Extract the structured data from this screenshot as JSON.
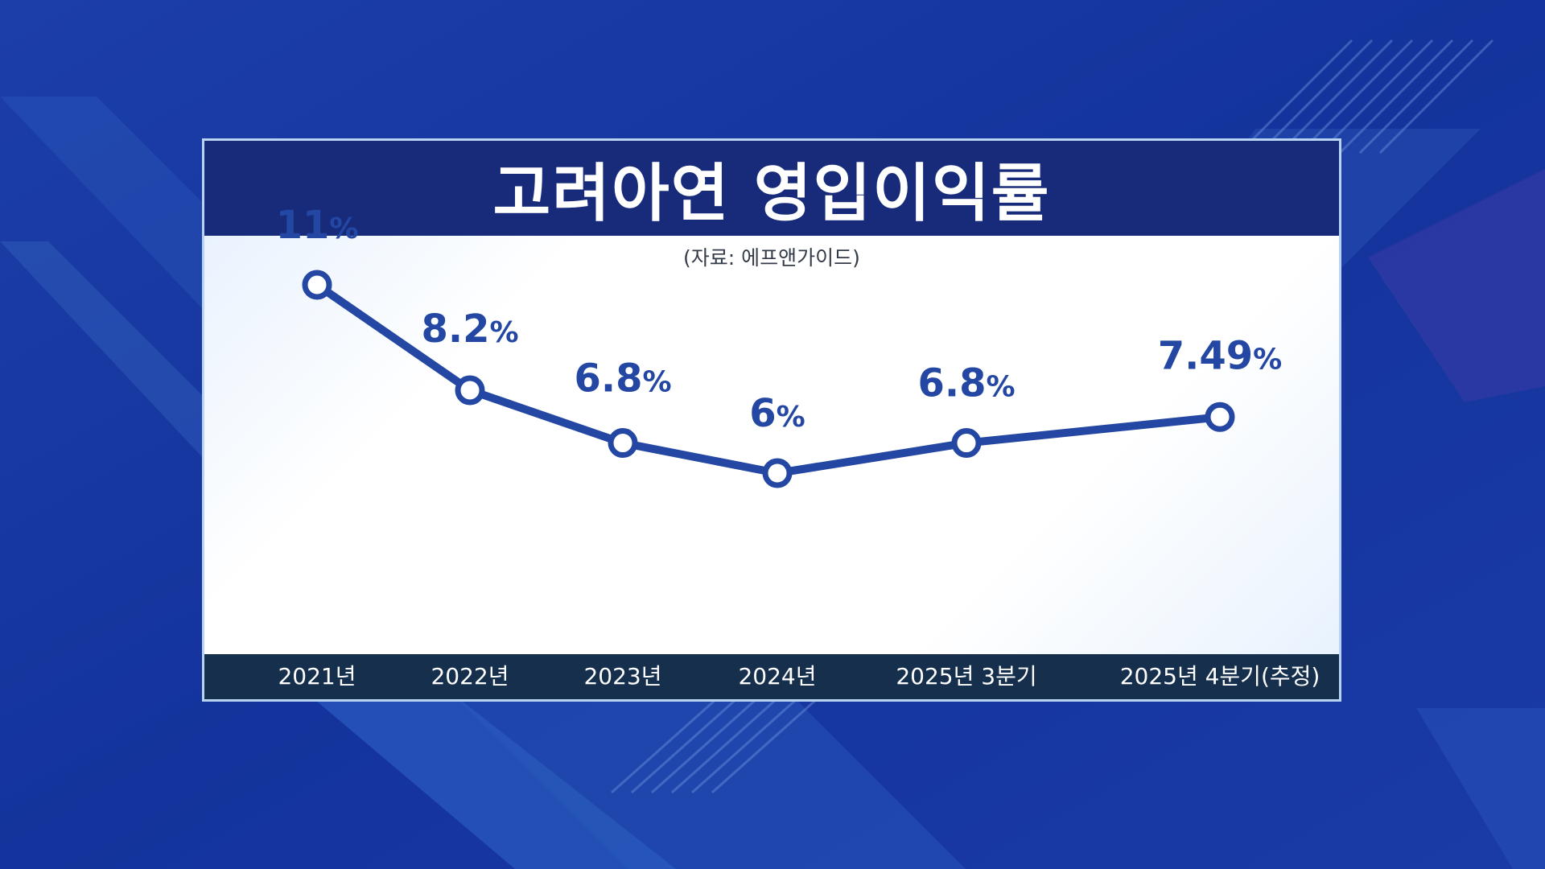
{
  "title": "고려아연 영입이익률",
  "source": "(자료: 에프앤가이드)",
  "colors": {
    "line": "#2347a3",
    "title_bar": "#172b7a",
    "axis_bar": "#162f4d",
    "background": "#1534a0"
  },
  "chart_data": {
    "type": "line",
    "categories": [
      "2021년",
      "2022년",
      "2023년",
      "2024년",
      "2025년 3분기",
      "2025년 4분기(추정)"
    ],
    "values": [
      11,
      8.2,
      6.8,
      6,
      6.8,
      7.49
    ],
    "value_labels": [
      "11",
      "8.2",
      "6.8",
      "6",
      "6.8",
      "7.49"
    ],
    "unit": "%",
    "title": "고려아연 영입이익률",
    "xlabel": "",
    "ylabel": "",
    "grid": false,
    "legend": "none"
  }
}
